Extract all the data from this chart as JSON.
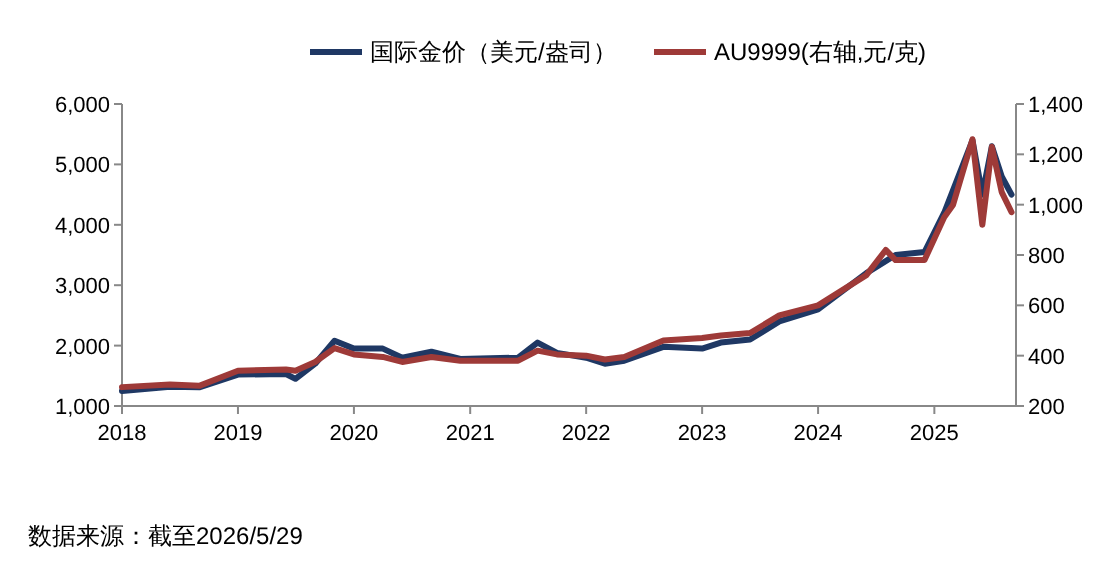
{
  "chart_data": {
    "type": "line",
    "legend": "top",
    "grid": false,
    "annotations": [
      "数据来源：截至2026/5/29"
    ],
    "xlim": [
      "2018-01-01",
      "2025-09-15"
    ],
    "xticks": [
      {
        "value": "2018-01-01",
        "label": "2018"
      },
      {
        "value": "2019-01-01",
        "label": "2019"
      },
      {
        "value": "2020-01-01",
        "label": "2020"
      },
      {
        "value": "2021-01-01",
        "label": "2021"
      },
      {
        "value": "2022-01-01",
        "label": "2022"
      },
      {
        "value": "2023-01-01",
        "label": "2023"
      },
      {
        "value": "2024-01-01",
        "label": "2024"
      },
      {
        "value": "2025-01-01",
        "label": "2025"
      }
    ],
    "ylim": [
      1000,
      6000
    ],
    "yticks": [
      {
        "value": 1000,
        "label": "1,000"
      },
      {
        "value": 2000,
        "label": "2,000"
      },
      {
        "value": 3000,
        "label": "3,000"
      },
      {
        "value": 4000,
        "label": "4,000"
      },
      {
        "value": 5000,
        "label": "5,000"
      },
      {
        "value": 6000,
        "label": "6,000"
      }
    ],
    "y2lim": [
      200,
      1400
    ],
    "y2ticks": [
      200,
      400,
      600,
      800,
      {
        "value": 1000,
        "label": "1,000"
      },
      {
        "value": 1200,
        "label": "1,200"
      },
      {
        "value": 1400,
        "label": "1,400"
      }
    ],
    "series": [
      {
        "name": "国际金价（美元/盎司）",
        "color": "#1f3864",
        "x": [
          "2018-01",
          "2018-06",
          "2018-09",
          "2019-01",
          "2019-06",
          "2019-07",
          "2019-09",
          "2019-11",
          "2020-01",
          "2020-04",
          "2020-06",
          "2020-09",
          "2020-12",
          "2021-06",
          "2021-08",
          "2021-10",
          "2022-01",
          "2022-03",
          "2022-05",
          "2022-09",
          "2023-01",
          "2023-03",
          "2023-06",
          "2023-09",
          "2024-01",
          "2024-06",
          "2024-09",
          "2024-12",
          "2025-02",
          "2025-05",
          "2025-06",
          "2025-07",
          "2025-08",
          "2025-09"
        ],
        "values": [
          1250,
          1320,
          1310,
          1520,
          1530,
          1450,
          1700,
          2080,
          1950,
          1950,
          1800,
          1900,
          1780,
          1800,
          2050,
          1880,
          1800,
          1700,
          1750,
          1980,
          1950,
          2050,
          2100,
          2400,
          2600,
          3200,
          3500,
          3550,
          4200,
          5400,
          4500,
          5300,
          4800,
          4500
        ]
      },
      {
        "name": "AU9999(右轴,元/克)",
        "color": "#9e3a38",
        "axis": "y2",
        "x": [
          "2018-01",
          "2018-06",
          "2018-09",
          "2019-01",
          "2019-06",
          "2019-07",
          "2019-09",
          "2019-11",
          "2020-01",
          "2020-04",
          "2020-06",
          "2020-09",
          "2020-12",
          "2021-06",
          "2021-08",
          "2021-10",
          "2022-01",
          "2022-03",
          "2022-05",
          "2022-09",
          "2023-01",
          "2023-03",
          "2023-06",
          "2023-09",
          "2024-01",
          "2024-06",
          "2024-08",
          "2024-09",
          "2024-12",
          "2025-02",
          "2025-03",
          "2025-05",
          "2025-06",
          "2025-07",
          "2025-08",
          "2025-09"
        ],
        "values": [
          275,
          285,
          280,
          340,
          345,
          340,
          375,
          430,
          405,
          395,
          375,
          395,
          380,
          380,
          420,
          405,
          400,
          385,
          395,
          460,
          470,
          480,
          490,
          560,
          600,
          720,
          820,
          780,
          780,
          950,
          1000,
          1260,
          920,
          1230,
          1050,
          970
        ]
      }
    ]
  }
}
